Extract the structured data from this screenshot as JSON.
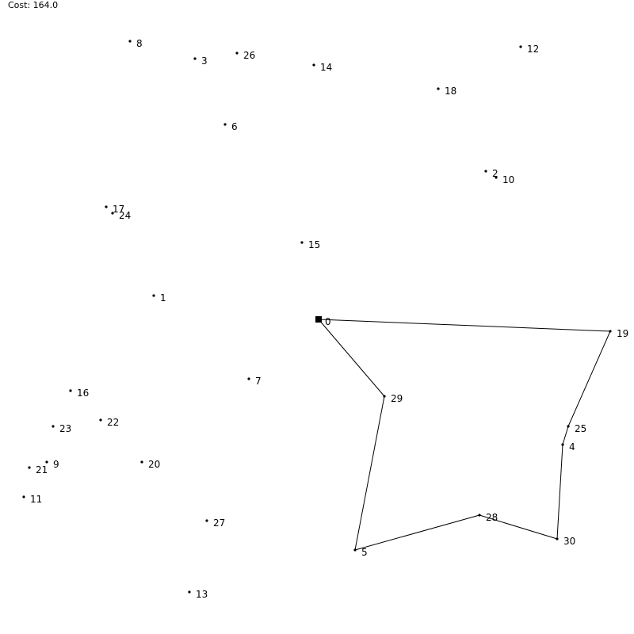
{
  "status": {
    "cost_label": "Cost: 164.0"
  },
  "colors": {
    "background": "#ffffff",
    "ink": "#000000"
  },
  "start_node": "0",
  "route": [
    "0",
    "19",
    "25",
    "4",
    "30",
    "28",
    "5",
    "29",
    "0"
  ],
  "nodes": [
    {
      "id": "0"
    },
    {
      "id": "1"
    },
    {
      "id": "2"
    },
    {
      "id": "3"
    },
    {
      "id": "4"
    },
    {
      "id": "5"
    },
    {
      "id": "6"
    },
    {
      "id": "7"
    },
    {
      "id": "8"
    },
    {
      "id": "9"
    },
    {
      "id": "10"
    },
    {
      "id": "11"
    },
    {
      "id": "12"
    },
    {
      "id": "13"
    },
    {
      "id": "14"
    },
    {
      "id": "15"
    },
    {
      "id": "16"
    },
    {
      "id": "17"
    },
    {
      "id": "18"
    },
    {
      "id": "19"
    },
    {
      "id": "20"
    },
    {
      "id": "21"
    },
    {
      "id": "22"
    },
    {
      "id": "23"
    },
    {
      "id": "24"
    },
    {
      "id": "25"
    },
    {
      "id": "26"
    },
    {
      "id": "27"
    },
    {
      "id": "28"
    },
    {
      "id": "29"
    },
    {
      "id": "30"
    }
  ]
}
